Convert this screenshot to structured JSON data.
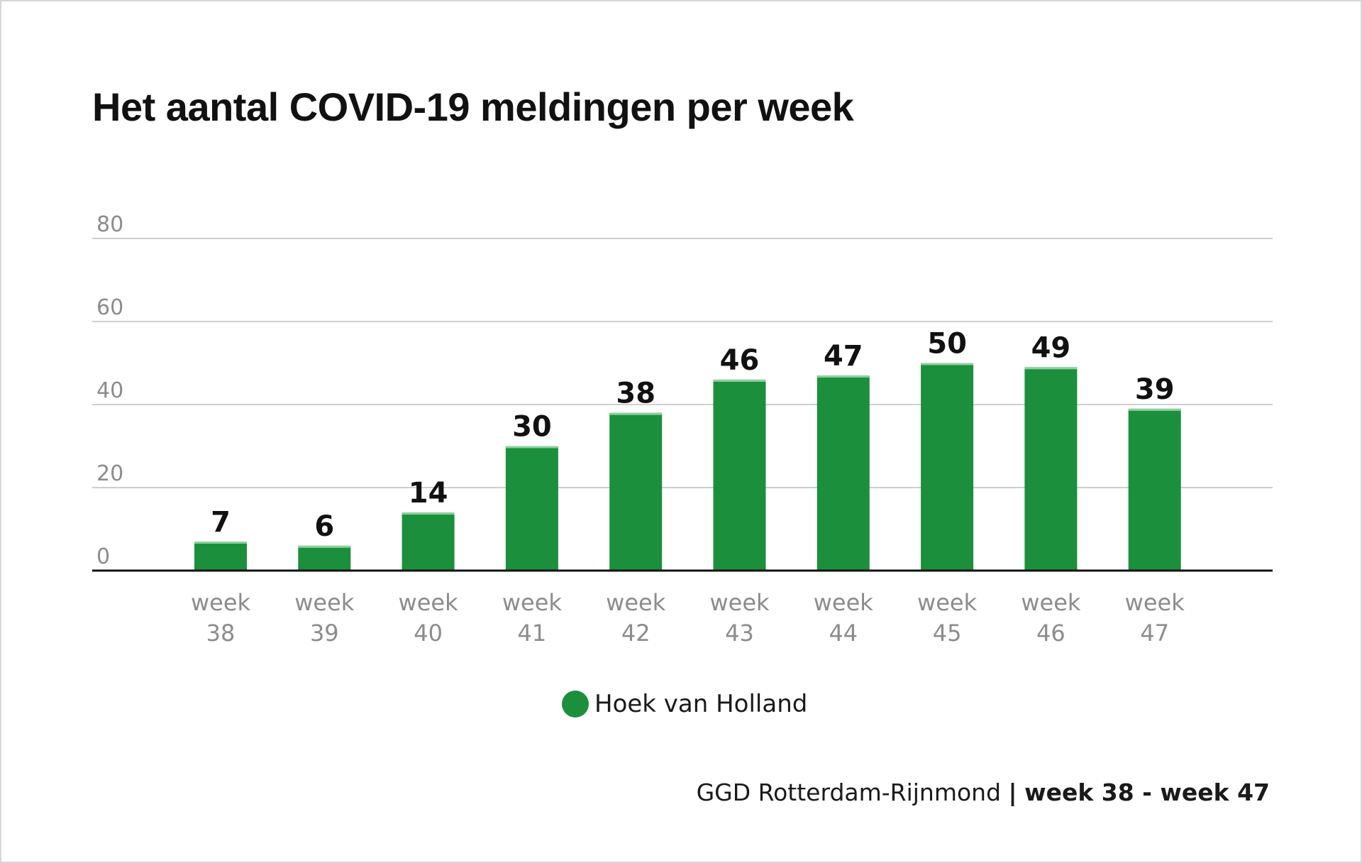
{
  "chart_data": {
    "type": "bar",
    "title": "Het aantal COVID-19 meldingen per week",
    "categories": [
      "week 38",
      "week 39",
      "week 40",
      "week 41",
      "week 42",
      "week 43",
      "week 44",
      "week 45",
      "week 46",
      "week 47"
    ],
    "series": [
      {
        "name": "Hoek van Holland",
        "values": [
          7,
          6,
          14,
          30,
          38,
          46,
          47,
          50,
          49,
          39
        ]
      }
    ],
    "yticks": [
      0,
      20,
      40,
      60,
      80
    ],
    "ylim": [
      0,
      80
    ],
    "xlabel": "",
    "ylabel": "",
    "grid": true,
    "legend_position": "bottom-center",
    "bar_color": "#1b8f3c"
  },
  "legend": {
    "label": "Hoek van Holland",
    "color": "#1b8f3c"
  },
  "footer": {
    "source": "GGD Rotterdam-Rijnmond",
    "separator": "|",
    "range": "week 38 - week 47"
  }
}
